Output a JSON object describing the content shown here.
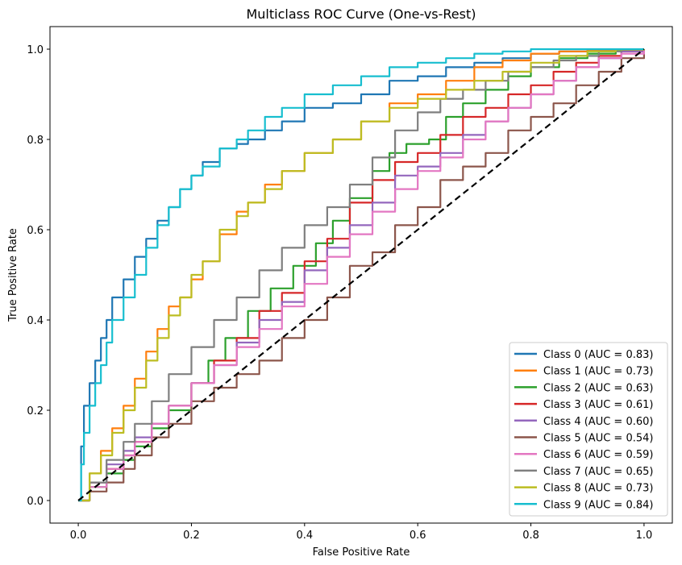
{
  "chart_data": {
    "type": "line",
    "title": "Multiclass ROC Curve (One-vs-Rest)",
    "xlabel": "False Positive Rate",
    "ylabel": "True Positive Rate",
    "xlim": [
      -0.05,
      1.05
    ],
    "ylim": [
      -0.05,
      1.05
    ],
    "x_ticks": [
      "0.0",
      "0.2",
      "0.4",
      "0.6",
      "0.8",
      "1.0"
    ],
    "y_ticks": [
      "0.0",
      "0.2",
      "0.4",
      "0.6",
      "0.8",
      "1.0"
    ],
    "grid": false,
    "legend_position": "lower-right",
    "baseline": {
      "x": [
        0,
        1
      ],
      "y": [
        0,
        1
      ],
      "color": "#000000",
      "style": "dashed"
    },
    "series": [
      {
        "name": "Class 0 (AUC = 0.83)",
        "color": "#1f77b4",
        "x": [
          0,
          0.005,
          0.01,
          0.02,
          0.03,
          0.04,
          0.05,
          0.06,
          0.08,
          0.1,
          0.12,
          0.14,
          0.16,
          0.18,
          0.2,
          0.22,
          0.25,
          0.28,
          0.3,
          0.33,
          0.36,
          0.4,
          0.45,
          0.5,
          0.55,
          0.6,
          0.65,
          0.7,
          0.75,
          0.8,
          0.85,
          0.9,
          0.95,
          1.0
        ],
        "y": [
          0,
          0.12,
          0.21,
          0.26,
          0.31,
          0.36,
          0.4,
          0.45,
          0.49,
          0.54,
          0.58,
          0.62,
          0.65,
          0.69,
          0.72,
          0.75,
          0.78,
          0.79,
          0.8,
          0.82,
          0.84,
          0.87,
          0.88,
          0.9,
          0.93,
          0.94,
          0.96,
          0.97,
          0.98,
          0.99,
          0.995,
          0.998,
          0.999,
          1.0
        ]
      },
      {
        "name": "Class 1 (AUC = 0.73)",
        "color": "#ff7f0e",
        "x": [
          0,
          0.02,
          0.04,
          0.06,
          0.08,
          0.1,
          0.12,
          0.14,
          0.16,
          0.18,
          0.2,
          0.22,
          0.25,
          0.28,
          0.3,
          0.33,
          0.36,
          0.4,
          0.45,
          0.5,
          0.55,
          0.6,
          0.65,
          0.7,
          0.75,
          0.8,
          0.85,
          0.9,
          0.95,
          1.0
        ],
        "y": [
          0,
          0.06,
          0.11,
          0.16,
          0.21,
          0.27,
          0.33,
          0.38,
          0.43,
          0.45,
          0.49,
          0.53,
          0.59,
          0.64,
          0.66,
          0.7,
          0.73,
          0.77,
          0.8,
          0.84,
          0.88,
          0.9,
          0.93,
          0.96,
          0.975,
          0.99,
          0.995,
          0.998,
          0.999,
          1.0
        ]
      },
      {
        "name": "Class 2 (AUC = 0.63)",
        "color": "#2ca02c",
        "x": [
          0,
          0.02,
          0.05,
          0.08,
          0.1,
          0.13,
          0.16,
          0.2,
          0.23,
          0.26,
          0.3,
          0.34,
          0.38,
          0.42,
          0.45,
          0.48,
          0.52,
          0.55,
          0.58,
          0.62,
          0.65,
          0.68,
          0.72,
          0.76,
          0.8,
          0.85,
          0.9,
          0.95,
          1.0
        ],
        "y": [
          0,
          0.03,
          0.06,
          0.09,
          0.12,
          0.16,
          0.2,
          0.26,
          0.31,
          0.36,
          0.42,
          0.47,
          0.52,
          0.57,
          0.62,
          0.67,
          0.73,
          0.77,
          0.79,
          0.8,
          0.85,
          0.88,
          0.91,
          0.94,
          0.96,
          0.98,
          0.99,
          0.998,
          1.0
        ]
      },
      {
        "name": "Class 3 (AUC = 0.61)",
        "color": "#d62728",
        "x": [
          0,
          0.02,
          0.05,
          0.08,
          0.1,
          0.13,
          0.16,
          0.2,
          0.24,
          0.28,
          0.32,
          0.36,
          0.4,
          0.44,
          0.48,
          0.52,
          0.56,
          0.6,
          0.64,
          0.68,
          0.72,
          0.76,
          0.8,
          0.84,
          0.88,
          0.92,
          0.96,
          1.0
        ],
        "y": [
          0,
          0.04,
          0.07,
          0.1,
          0.13,
          0.17,
          0.21,
          0.26,
          0.31,
          0.36,
          0.42,
          0.46,
          0.53,
          0.58,
          0.66,
          0.71,
          0.75,
          0.77,
          0.81,
          0.85,
          0.87,
          0.9,
          0.92,
          0.95,
          0.97,
          0.985,
          0.995,
          1.0
        ]
      },
      {
        "name": "Class 4 (AUC = 0.60)",
        "color": "#9467bd",
        "x": [
          0,
          0.02,
          0.05,
          0.08,
          0.1,
          0.13,
          0.16,
          0.2,
          0.24,
          0.28,
          0.32,
          0.36,
          0.4,
          0.44,
          0.48,
          0.52,
          0.56,
          0.6,
          0.64,
          0.68,
          0.72,
          0.76,
          0.8,
          0.84,
          0.88,
          0.92,
          0.96,
          1.0
        ],
        "y": [
          0,
          0.04,
          0.08,
          0.11,
          0.14,
          0.17,
          0.21,
          0.26,
          0.3,
          0.35,
          0.4,
          0.44,
          0.51,
          0.56,
          0.61,
          0.66,
          0.72,
          0.74,
          0.77,
          0.81,
          0.84,
          0.87,
          0.9,
          0.93,
          0.96,
          0.98,
          0.995,
          1.0
        ]
      },
      {
        "name": "Class 5 (AUC = 0.54)",
        "color": "#8c564b",
        "x": [
          0,
          0.02,
          0.05,
          0.08,
          0.1,
          0.13,
          0.16,
          0.2,
          0.24,
          0.28,
          0.32,
          0.36,
          0.4,
          0.44,
          0.48,
          0.52,
          0.56,
          0.6,
          0.64,
          0.68,
          0.72,
          0.76,
          0.8,
          0.84,
          0.88,
          0.92,
          0.96,
          1.0
        ],
        "y": [
          0,
          0.02,
          0.04,
          0.07,
          0.1,
          0.14,
          0.17,
          0.22,
          0.25,
          0.28,
          0.31,
          0.36,
          0.4,
          0.45,
          0.52,
          0.55,
          0.61,
          0.65,
          0.71,
          0.74,
          0.77,
          0.82,
          0.85,
          0.88,
          0.92,
          0.95,
          0.98,
          1.0
        ]
      },
      {
        "name": "Class 6 (AUC = 0.59)",
        "color": "#e377c2",
        "x": [
          0,
          0.02,
          0.05,
          0.08,
          0.1,
          0.13,
          0.16,
          0.2,
          0.24,
          0.28,
          0.32,
          0.36,
          0.4,
          0.44,
          0.48,
          0.52,
          0.56,
          0.6,
          0.64,
          0.68,
          0.72,
          0.76,
          0.8,
          0.84,
          0.88,
          0.92,
          0.96,
          1.0
        ],
        "y": [
          0,
          0.03,
          0.07,
          0.1,
          0.13,
          0.17,
          0.21,
          0.26,
          0.3,
          0.34,
          0.38,
          0.43,
          0.48,
          0.54,
          0.59,
          0.64,
          0.69,
          0.73,
          0.76,
          0.8,
          0.84,
          0.87,
          0.9,
          0.93,
          0.96,
          0.98,
          0.99,
          1.0
        ]
      },
      {
        "name": "Class 7 (AUC = 0.65)",
        "color": "#7f7f7f",
        "x": [
          0,
          0.02,
          0.05,
          0.08,
          0.1,
          0.13,
          0.16,
          0.2,
          0.24,
          0.28,
          0.32,
          0.36,
          0.4,
          0.44,
          0.48,
          0.52,
          0.56,
          0.6,
          0.64,
          0.68,
          0.72,
          0.76,
          0.8,
          0.84,
          0.88,
          0.92,
          0.96,
          1.0
        ],
        "y": [
          0,
          0.04,
          0.09,
          0.13,
          0.17,
          0.22,
          0.28,
          0.34,
          0.4,
          0.45,
          0.51,
          0.56,
          0.61,
          0.65,
          0.7,
          0.76,
          0.82,
          0.86,
          0.89,
          0.91,
          0.93,
          0.95,
          0.96,
          0.975,
          0.985,
          0.995,
          0.999,
          1.0
        ]
      },
      {
        "name": "Class 8 (AUC = 0.73)",
        "color": "#bcbd22",
        "x": [
          0,
          0.02,
          0.04,
          0.06,
          0.08,
          0.1,
          0.12,
          0.14,
          0.16,
          0.18,
          0.2,
          0.22,
          0.25,
          0.28,
          0.3,
          0.33,
          0.36,
          0.4,
          0.45,
          0.5,
          0.55,
          0.6,
          0.65,
          0.7,
          0.75,
          0.8,
          0.85,
          0.9,
          0.95,
          1.0
        ],
        "y": [
          0,
          0.06,
          0.1,
          0.15,
          0.2,
          0.25,
          0.31,
          0.36,
          0.41,
          0.45,
          0.5,
          0.53,
          0.6,
          0.63,
          0.66,
          0.69,
          0.73,
          0.77,
          0.8,
          0.84,
          0.87,
          0.89,
          0.91,
          0.93,
          0.95,
          0.97,
          0.985,
          0.995,
          0.999,
          1.0
        ]
      },
      {
        "name": "Class 9 (AUC = 0.84)",
        "color": "#17becf",
        "x": [
          0,
          0.005,
          0.01,
          0.02,
          0.03,
          0.04,
          0.05,
          0.06,
          0.08,
          0.1,
          0.12,
          0.14,
          0.16,
          0.18,
          0.2,
          0.22,
          0.25,
          0.28,
          0.3,
          0.33,
          0.36,
          0.4,
          0.45,
          0.5,
          0.55,
          0.6,
          0.65,
          0.7,
          0.75,
          0.8,
          0.85,
          0.9,
          0.95,
          1.0
        ],
        "y": [
          0,
          0.08,
          0.15,
          0.21,
          0.26,
          0.3,
          0.35,
          0.4,
          0.45,
          0.5,
          0.56,
          0.61,
          0.65,
          0.69,
          0.72,
          0.74,
          0.78,
          0.8,
          0.82,
          0.85,
          0.87,
          0.9,
          0.92,
          0.94,
          0.96,
          0.97,
          0.98,
          0.99,
          0.995,
          1.0,
          1.0,
          1.0,
          1.0,
          1.0
        ]
      }
    ]
  }
}
